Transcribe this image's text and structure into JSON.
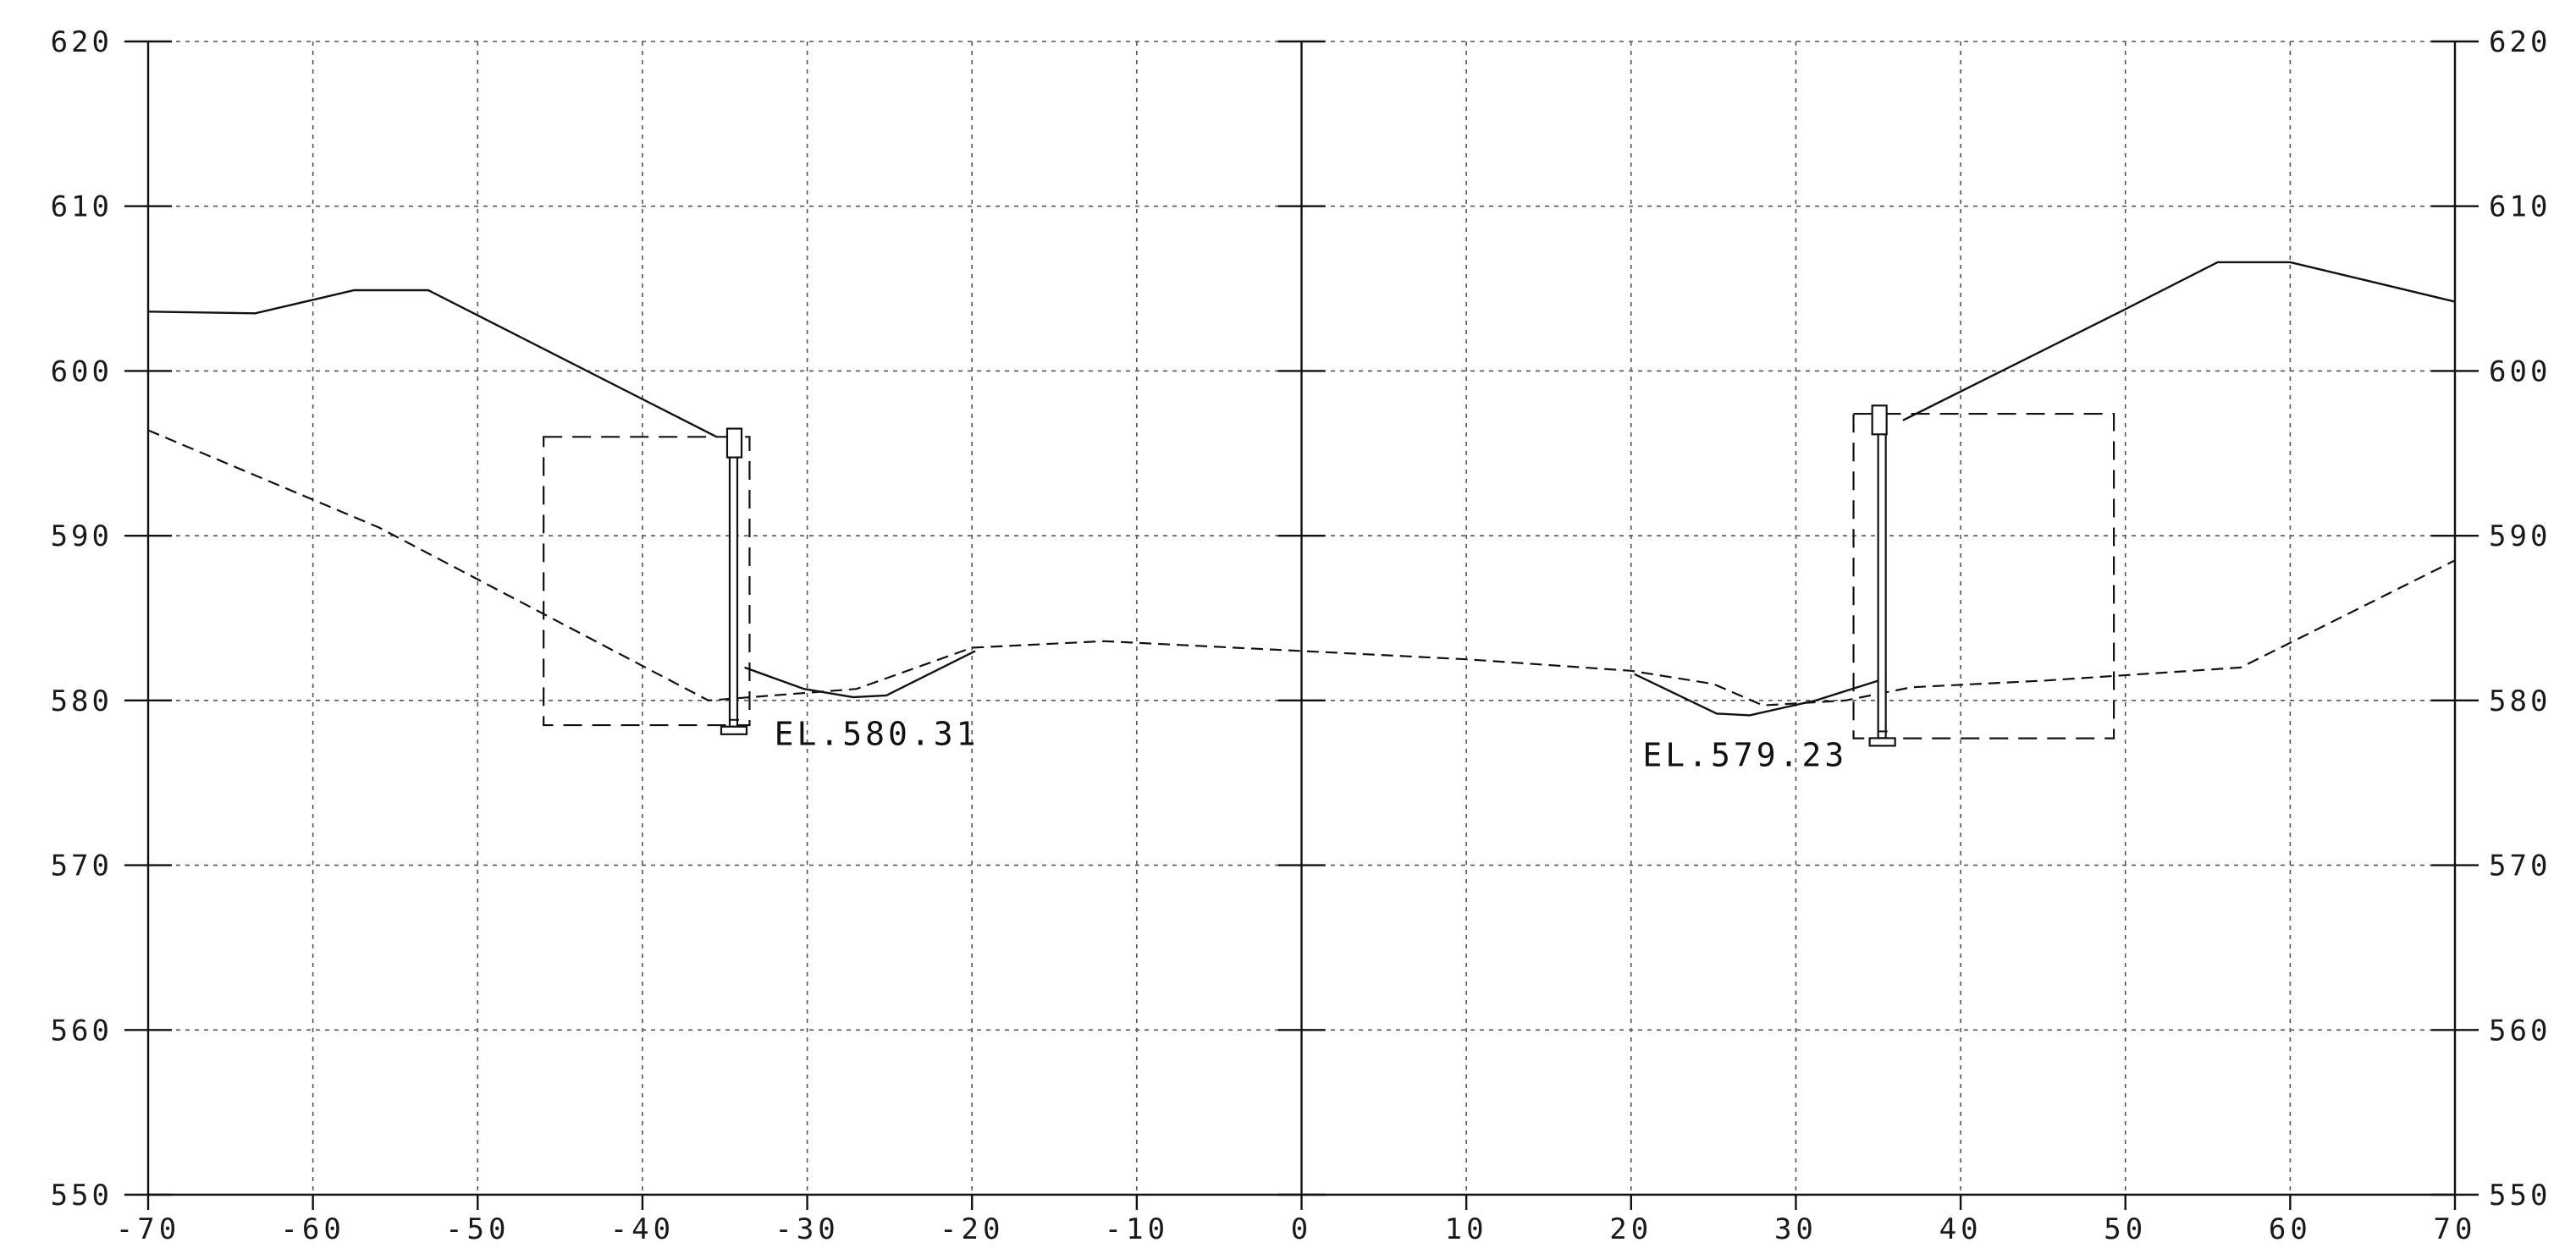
{
  "chart_data": {
    "type": "line",
    "xlim": [
      -70,
      70
    ],
    "ylim": [
      550,
      620
    ],
    "x_ticks": [
      -70,
      -60,
      -50,
      -40,
      -30,
      -20,
      -10,
      0,
      10,
      20,
      30,
      40,
      50,
      60,
      70
    ],
    "x_tick_labels": [
      "-70",
      "-60",
      "-50",
      "-40",
      "-30",
      "-20",
      "-10",
      "0",
      "10",
      "20",
      "30",
      "40",
      "50",
      "60",
      "70"
    ],
    "y_ticks": [
      550,
      560,
      570,
      580,
      590,
      600,
      610,
      620
    ],
    "y_tick_labels": [
      "550",
      "560",
      "570",
      "580",
      "590",
      "600",
      "610",
      "620"
    ],
    "grid": true,
    "series": [
      {
        "style": "solid",
        "segments": [
          [
            [
              -70,
              603.6
            ],
            [
              -63.5,
              603.5
            ],
            [
              -57.5,
              604.9
            ],
            [
              -53,
              604.9
            ],
            [
              -35.5,
              596.0
            ]
          ],
          [
            [
              -33.8,
              582.0
            ],
            [
              -30.2,
              580.7
            ],
            [
              -27.2,
              580.2
            ],
            [
              -25.2,
              580.3
            ],
            [
              -19.8,
              583.0
            ]
          ],
          [
            [
              20.2,
              581.6
            ],
            [
              25.2,
              579.2
            ],
            [
              27.2,
              579.1
            ],
            [
              31.2,
              580.0
            ],
            [
              35.0,
              581.2
            ]
          ],
          [
            [
              36.5,
              597.0
            ],
            [
              49.5,
              603.5
            ],
            [
              55.6,
              606.6
            ],
            [
              60.0,
              606.6
            ],
            [
              70,
              604.2
            ]
          ]
        ]
      },
      {
        "style": "dashed",
        "points": [
          [
            -70,
            596.4
          ],
          [
            -56,
            590.5
          ],
          [
            -36,
            580.0
          ],
          [
            -27,
            580.7
          ],
          [
            -20,
            583.2
          ],
          [
            -12,
            583.6
          ],
          [
            0,
            583.0
          ],
          [
            10,
            582.5
          ],
          [
            20,
            581.8
          ],
          [
            25,
            581.0
          ],
          [
            28,
            579.7
          ],
          [
            33,
            580.0
          ],
          [
            37,
            580.8
          ],
          [
            45,
            581.2
          ],
          [
            57,
            582.0
          ],
          [
            70,
            588.5
          ]
        ]
      }
    ],
    "walls": [
      {
        "side": "left",
        "x": -34.5,
        "top": 596.5,
        "bottom": 578.0,
        "excavation": {
          "x0": -46.0,
          "x1": -33.5,
          "y_top": 596.0,
          "y_bottom": 578.5
        }
      },
      {
        "side": "right",
        "x": 35.2,
        "top": 597.9,
        "bottom": 577.3,
        "excavation": {
          "x0": 33.5,
          "x1": 49.3,
          "y_top": 597.4,
          "y_bottom": 577.7
        }
      }
    ],
    "annotations": [
      {
        "text": "EL.580.31",
        "x": -32.0,
        "y": 577.3
      },
      {
        "text": "EL.579.23",
        "x": 20.7,
        "y": 576.0
      }
    ]
  }
}
